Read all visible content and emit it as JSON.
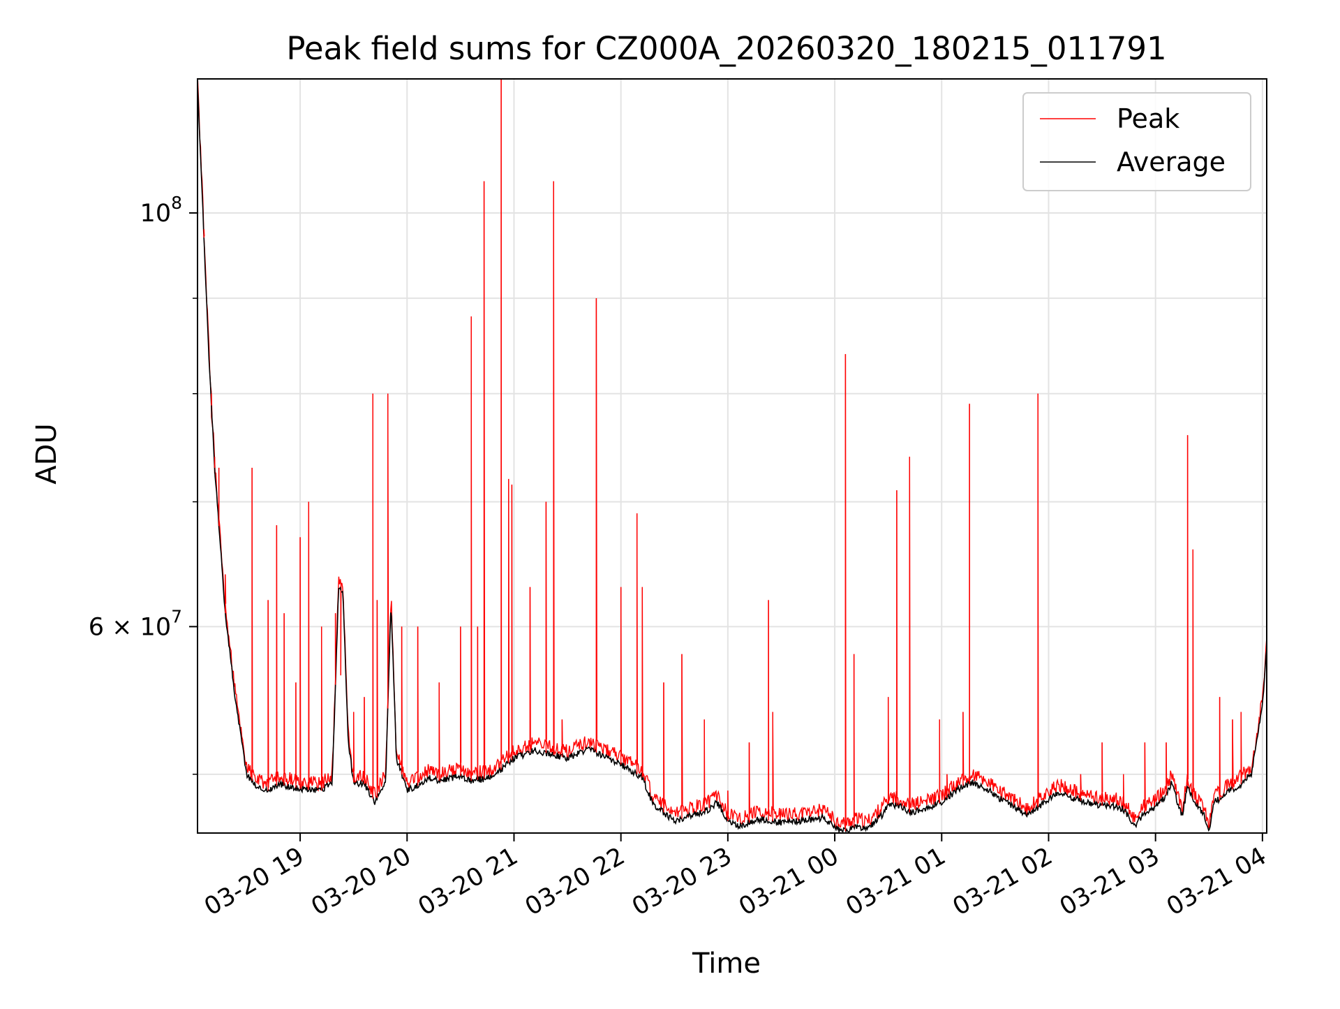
{
  "chart_data": {
    "type": "line",
    "title": "Peak field sums for CZ000A_20260320_180215_011791",
    "xlabel": "Time",
    "ylabel": "ADU",
    "yscale": "log",
    "ylim": [
      46500000,
      118000000
    ],
    "xlim_hours": [
      18.04,
      28.04
    ],
    "grid": true,
    "legend_position": "top-right",
    "x_ticks": [
      {
        "label": "03-20 19",
        "hour": 19
      },
      {
        "label": "03-20 20",
        "hour": 20
      },
      {
        "label": "03-20 21",
        "hour": 21
      },
      {
        "label": "03-20 22",
        "hour": 22
      },
      {
        "label": "03-20 23",
        "hour": 23
      },
      {
        "label": "03-21 00",
        "hour": 24
      },
      {
        "label": "03-21 01",
        "hour": 25
      },
      {
        "label": "03-21 02",
        "hour": 26
      },
      {
        "label": "03-21 03",
        "hour": 27
      },
      {
        "label": "03-21 04",
        "hour": 28
      }
    ],
    "y_ticks": [
      {
        "label": "10",
        "exp": "8",
        "value": 100000000
      },
      {
        "label": "6 × 10",
        "exp": "7",
        "value": 60000000
      }
    ],
    "y_minor_ticks": [
      50000000,
      70000000,
      80000000,
      90000000
    ],
    "series": [
      {
        "name": "Average",
        "color": "#000000",
        "hours": [
          18.04,
          18.1,
          18.15,
          18.2,
          18.3,
          18.4,
          18.5,
          18.6,
          18.7,
          18.8,
          19.0,
          19.2,
          19.3,
          19.36,
          19.4,
          19.45,
          19.5,
          19.6,
          19.7,
          19.8,
          19.85,
          19.9,
          20.0,
          20.1,
          20.2,
          20.3,
          20.5,
          20.6,
          20.8,
          21.0,
          21.2,
          21.5,
          21.7,
          22.0,
          22.1,
          22.2,
          22.3,
          22.5,
          22.6,
          22.8,
          22.9,
          23.0,
          23.1,
          23.3,
          23.5,
          23.7,
          23.9,
          24.0,
          24.1,
          24.2,
          24.3,
          24.45,
          24.5,
          24.6,
          24.7,
          24.85,
          25.0,
          25.2,
          25.3,
          25.45,
          25.5,
          25.7,
          25.8,
          26.0,
          26.1,
          26.2,
          26.4,
          26.5,
          26.6,
          26.7,
          26.8,
          26.9,
          27.0,
          27.1,
          27.15,
          27.2,
          27.25,
          27.3,
          27.35,
          27.4,
          27.45,
          27.5,
          27.55,
          27.6,
          27.7,
          27.8,
          27.9,
          28.0,
          28.04
        ],
        "values": [
          117000000,
          97000000,
          83000000,
          73000000,
          61000000,
          54500000,
          50000000,
          49200000,
          49000000,
          49400000,
          49100000,
          49000000,
          49500000,
          63000000,
          62500000,
          52000000,
          49500000,
          49400000,
          48300000,
          49600000,
          62000000,
          51000000,
          49000000,
          49300000,
          49800000,
          49600000,
          49900000,
          49600000,
          49800000,
          51000000,
          51500000,
          51000000,
          51600000,
          50600000,
          50200000,
          49800000,
          48200000,
          47200000,
          47400000,
          47800000,
          48300000,
          47200000,
          46900000,
          47300000,
          47100000,
          47200000,
          47400000,
          46800000,
          46600000,
          46900000,
          46700000,
          47600000,
          48200000,
          48100000,
          47700000,
          47900000,
          48300000,
          49300000,
          49500000,
          49000000,
          48700000,
          47900000,
          47500000,
          48500000,
          48900000,
          48600000,
          48200000,
          48100000,
          48100000,
          47900000,
          46900000,
          47700000,
          48000000,
          48700000,
          49500000,
          48400000,
          47500000,
          49300000,
          48500000,
          47900000,
          47700000,
          46500000,
          48500000,
          48400000,
          49000000,
          49400000,
          50100000,
          54500000,
          58500000
        ]
      },
      {
        "name": "Peak",
        "color": "#ff0000",
        "spike_hours": [
          18.1,
          18.17,
          18.2,
          18.24,
          18.3,
          18.36,
          18.55,
          18.7,
          18.78,
          18.85,
          18.96,
          19.0,
          19.08,
          19.2,
          19.33,
          19.38,
          19.5,
          19.6,
          19.68,
          19.72,
          19.82,
          19.95,
          20.1,
          20.3,
          20.5,
          20.6,
          20.66,
          20.72,
          20.88,
          20.95,
          20.98,
          21.15,
          21.3,
          21.37,
          21.45,
          21.77,
          22.0,
          22.15,
          22.2,
          22.4,
          22.57,
          22.78,
          23.0,
          23.2,
          23.38,
          23.42,
          24.1,
          24.18,
          24.5,
          24.58,
          24.7,
          24.98,
          25.05,
          25.2,
          25.26,
          25.9,
          26.3,
          26.5,
          26.7,
          26.9,
          27.1,
          27.3,
          27.35,
          27.6,
          27.72,
          27.8
        ],
        "spike_values": [
          98000000,
          80000000,
          74000000,
          73000000,
          64000000,
          57000000,
          73000000,
          62000000,
          68000000,
          61000000,
          56000000,
          67000000,
          70000000,
          60000000,
          61000000,
          56500000,
          54000000,
          55000000,
          80000000,
          62000000,
          80000000,
          60000000,
          60000000,
          56000000,
          60000000,
          88000000,
          60000000,
          104000000,
          118000000,
          72000000,
          71500000,
          63000000,
          70000000,
          104000000,
          53500000,
          90000000,
          63000000,
          69000000,
          63000000,
          56000000,
          58000000,
          53500000,
          49000000,
          52000000,
          62000000,
          54000000,
          84000000,
          58000000,
          55000000,
          71000000,
          74000000,
          53500000,
          50000000,
          54000000,
          79000000,
          80000000,
          50000000,
          52000000,
          50000000,
          52000000,
          52000000,
          76000000,
          66000000,
          55000000,
          53500000,
          54000000
        ]
      }
    ]
  }
}
